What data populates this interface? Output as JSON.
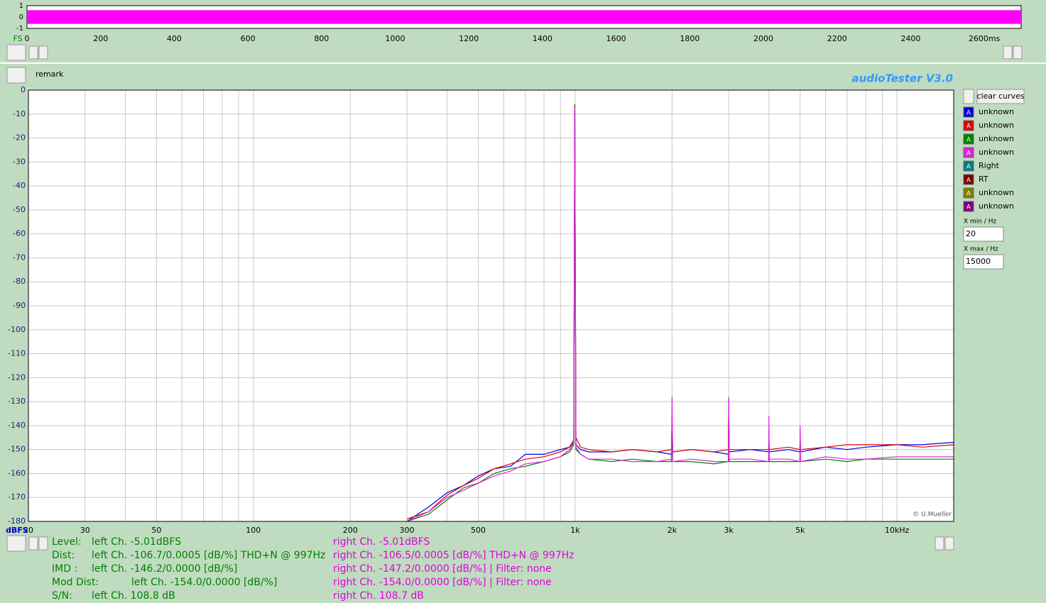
{
  "chart_data": [
    {
      "type": "area",
      "y_unit": "FS",
      "color": "#ff00ff",
      "x": [
        0,
        2700
      ],
      "upper": [
        0.6,
        0.6
      ],
      "lower": [
        -0.6,
        -0.6
      ],
      "xlim": [
        0,
        2700
      ],
      "ylim": [
        -1,
        1
      ],
      "xticks": [
        0,
        200,
        400,
        600,
        800,
        1000,
        1200,
        1400,
        1600,
        1800,
        2000,
        2200,
        2400,
        {
          "value": 2600,
          "label": "2600ms"
        }
      ],
      "yticks": [
        1,
        0,
        -1
      ]
    },
    {
      "type": "line",
      "y_unit": "dBFS",
      "x_scale": "log",
      "grid": true,
      "credit": "© U.Mueller",
      "xlim": [
        20,
        15000
      ],
      "ylim": [
        -180,
        0
      ],
      "xticks": [
        20,
        30,
        50,
        100,
        200,
        300,
        500,
        {
          "value": 1000,
          "label": "1k"
        },
        {
          "value": 2000,
          "label": "2k"
        },
        {
          "value": 3000,
          "label": "3k"
        },
        {
          "value": 5000,
          "label": "5k"
        },
        {
          "value": 10000,
          "label": "10kHz"
        }
      ],
      "xgrid": [
        20,
        30,
        40,
        50,
        60,
        70,
        80,
        90,
        100,
        200,
        300,
        400,
        500,
        600,
        700,
        800,
        900,
        1000,
        2000,
        3000,
        4000,
        5000,
        6000,
        7000,
        8000,
        9000,
        10000
      ],
      "yticks": [
        0,
        -10,
        -20,
        -30,
        -40,
        -50,
        -60,
        -70,
        -80,
        -90,
        -100,
        -110,
        -120,
        -130,
        -140,
        -150,
        -160,
        -170,
        -180
      ],
      "x": [
        300,
        350,
        400,
        450,
        500,
        560,
        630,
        700,
        800,
        900,
        960,
        990,
        997,
        1005,
        1040,
        1100,
        1300,
        1500,
        1800,
        1990,
        2000,
        2010,
        2300,
        2700,
        2990,
        3000,
        3010,
        3500,
        3990,
        4000,
        4010,
        4600,
        4990,
        5000,
        5010,
        6000,
        7000,
        8000,
        10000,
        12000,
        15000
      ],
      "series": [
        {
          "name": "unknown",
          "color": "#0000e0",
          "values": [
            -180,
            -174,
            -168,
            -165,
            -161,
            -158,
            -157,
            -152,
            -152,
            -150,
            -149,
            -147,
            -6,
            -148,
            -150,
            -151,
            -151,
            -150,
            -151,
            -152,
            -140,
            -151,
            -150,
            -151,
            -152,
            -134,
            -151,
            -150,
            -151,
            -145,
            -151,
            -150,
            -151,
            -142,
            -151,
            -149,
            -150,
            -149,
            -148,
            -148,
            -147
          ]
        },
        {
          "name": "unknown",
          "color": "#e00000",
          "values": [
            -179,
            -176,
            -169,
            -165,
            -162,
            -158,
            -156,
            -154,
            -153,
            -151,
            -149,
            -146,
            -6,
            -145,
            -149,
            -150,
            -151,
            -150,
            -151,
            -150,
            -138,
            -151,
            -150,
            -151,
            -150,
            -135,
            -150,
            -150,
            -150,
            -145,
            -150,
            -149,
            -150,
            -143,
            -150,
            -149,
            -148,
            -148,
            -148,
            -149,
            -148
          ]
        },
        {
          "name": "unknown",
          "color": "#008000",
          "values": [
            -180,
            -177,
            -171,
            -166,
            -164,
            -160,
            -158,
            -157,
            -155,
            -153,
            -151,
            -148,
            -6,
            -150,
            -152,
            -154,
            -155,
            -154,
            -155,
            -155,
            -140,
            -155,
            -155,
            -156,
            -155,
            -129,
            -155,
            -155,
            -155,
            -145,
            -155,
            -155,
            -155,
            -145,
            -155,
            -154,
            -155,
            -154,
            -154,
            -154,
            -154
          ]
        },
        {
          "name": "unknown",
          "color": "#e020e0",
          "values": [
            -180,
            -176,
            -170,
            -167,
            -164,
            -161,
            -159,
            -156,
            -155,
            -153,
            -150,
            -147,
            -7,
            -149,
            -152,
            -154,
            -154,
            -155,
            -155,
            -154,
            -128,
            -155,
            -154,
            -155,
            -155,
            -128,
            -154,
            -154,
            -155,
            -136,
            -154,
            -154,
            -155,
            -140,
            -155,
            -153,
            -154,
            -154,
            -153,
            -153,
            -153
          ]
        },
        {
          "name": "Right",
          "color": "#008080",
          "visible": false
        },
        {
          "name": "RT",
          "color": "#800000",
          "visible": false
        },
        {
          "name": "unknown",
          "color": "#808000",
          "visible": false
        },
        {
          "name": "unknown",
          "color": "#800080",
          "visible": false
        }
      ]
    }
  ],
  "header": {
    "remark": "remark",
    "app_title": "audioTester  V3.0"
  },
  "controls": {
    "clear": "clear curves",
    "curve_button": "A",
    "xmin_label": "X min / Hz",
    "xmin": "20",
    "xmax_label": "X max / Hz",
    "xmax": "15000"
  },
  "results": {
    "left": [
      {
        "label": "Level:",
        "text": "left Ch. -5.01dBFS"
      },
      {
        "label": "Dist:",
        "text": "left Ch. -106.7/0.0005 [dB/%] THD+N  @ 997Hz"
      },
      {
        "label": "IMD  :",
        "text": "left Ch. -146.2/0.0000 [dB/%]"
      },
      {
        "label": "Mod Dist:",
        "text": "left Ch. -154.0/0.0000 [dB/%]"
      },
      {
        "label": "S/N:",
        "text": "left Ch. 108.8 dB"
      }
    ],
    "right": [
      "right Ch. -5.01dBFS",
      "right Ch. -106.5/0.0005 [dB/%] THD+N  @ 997Hz",
      "right Ch. -147.2/0.0000 [dB/%] |   Filter: none",
      "right Ch. -154.0/0.0000 [dB/%] |   Filter: none",
      "right Ch. 108.7 dB"
    ]
  }
}
